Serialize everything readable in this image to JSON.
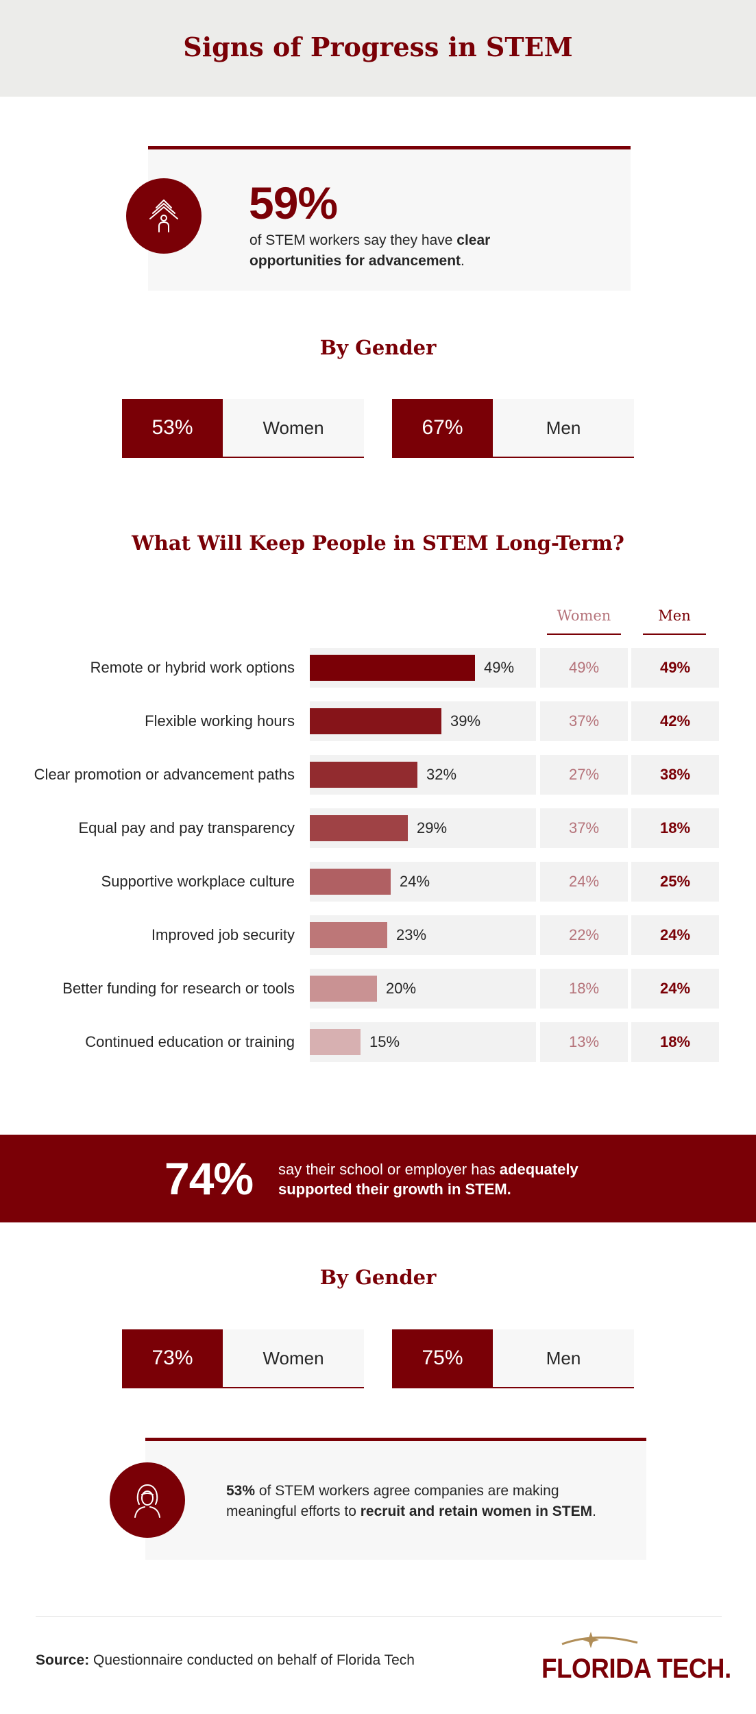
{
  "header": {
    "title": "Signs of Progress in STEM"
  },
  "stat1": {
    "value": "59%",
    "text_before": "of STEM workers say they have ",
    "text_bold": "clear opportunities for advancement",
    "text_after": "."
  },
  "gender1": {
    "title": "By Gender",
    "women_pct": "53%",
    "women_label": "Women",
    "men_pct": "67%",
    "men_label": "Men"
  },
  "chart_data": {
    "type": "bar",
    "title": "What Will Keep People in STEM Long-Term?",
    "orientation": "horizontal",
    "categories": [
      "Remote or hybrid work options",
      "Flexible working hours",
      "Clear promotion or advancement paths",
      "Equal pay and pay transparency",
      "Supportive workplace culture",
      "Improved job security",
      "Better funding for research or tools",
      "Continued education or training"
    ],
    "values": [
      49,
      39,
      32,
      29,
      24,
      23,
      20,
      15
    ],
    "value_labels": [
      "49%",
      "39%",
      "32%",
      "29%",
      "24%",
      "23%",
      "20%",
      "15%"
    ],
    "table_columns": [
      "Women",
      "Men"
    ],
    "women": [
      "49%",
      "37%",
      "27%",
      "37%",
      "24%",
      "22%",
      "18%",
      "13%"
    ],
    "men": [
      "49%",
      "42%",
      "38%",
      "18%",
      "25%",
      "24%",
      "24%",
      "18%"
    ],
    "xlim": [
      0,
      49
    ],
    "bar_colors": [
      "#7a0006",
      "#861419",
      "#922b2f",
      "#9f4245",
      "#b06063",
      "#bd7778",
      "#c99293",
      "#d7b0b1"
    ]
  },
  "banner": {
    "value": "74%",
    "text_before": "say their school or employer has ",
    "text_bold": "adequately supported their growth in STEM."
  },
  "gender2": {
    "title": "By Gender",
    "women_pct": "73%",
    "women_label": "Women",
    "men_pct": "75%",
    "men_label": "Men"
  },
  "stat2": {
    "pct": "53%",
    "text_mid": " of STEM workers agree companies are making meaningful efforts to ",
    "text_bold": "recruit and retain women in STEM",
    "text_after": "."
  },
  "footer": {
    "source_label": "Source:",
    "source_text": " Questionnaire conducted on behalf of Florida Tech",
    "logo_text": "FLORIDA TECH."
  }
}
